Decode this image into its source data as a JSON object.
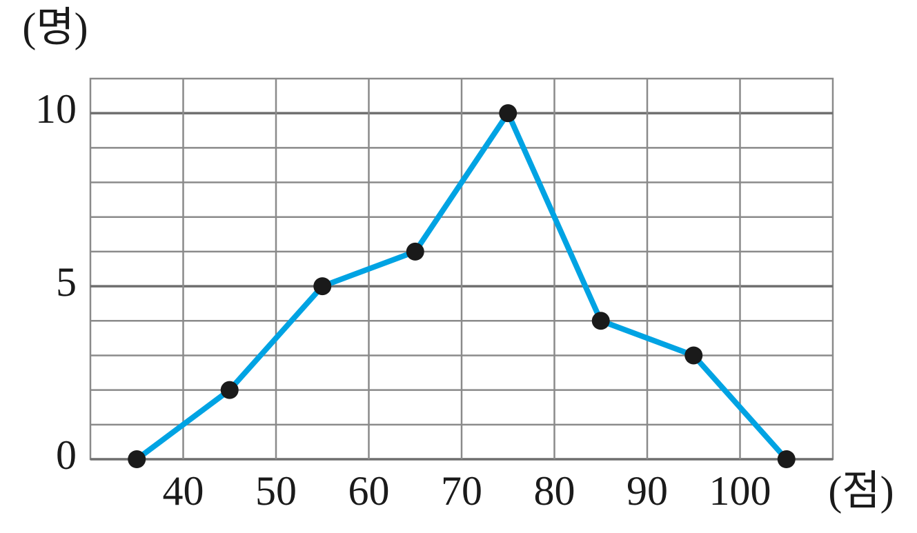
{
  "chart_data": {
    "type": "line",
    "y_label": "(명)",
    "x_label": "(점)",
    "x": [
      35,
      45,
      55,
      65,
      75,
      85,
      95,
      105
    ],
    "series": [
      {
        "color": "#00a3e3",
        "values": [
          0,
          2,
          5,
          6,
          10,
          4,
          3,
          0
        ]
      }
    ],
    "xlim": [
      30,
      110
    ],
    "xticks": [
      40,
      50,
      60,
      70,
      80,
      90,
      100
    ],
    "ylim": [
      0,
      11
    ],
    "yticks": [
      0,
      5,
      10
    ],
    "minor_yticks": [
      1,
      2,
      3,
      4,
      6,
      7,
      8,
      9
    ],
    "grid": true,
    "marker_color": "#1a1a1a"
  }
}
